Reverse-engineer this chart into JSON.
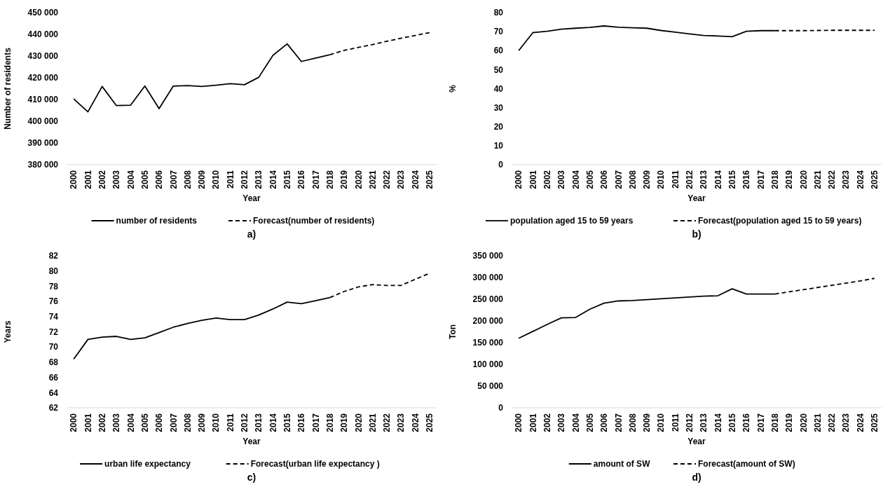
{
  "chart_data": [
    {
      "type": "line",
      "title": "a)",
      "xlabel": "Year",
      "ylabel": "Number of residents",
      "categories": [
        "2000",
        "2001",
        "2002",
        "2003",
        "2004",
        "2005",
        "2006",
        "2007",
        "2008",
        "2009",
        "2010",
        "2011",
        "2012",
        "2013",
        "2014",
        "2015",
        "2016",
        "2017",
        "2018",
        "2019",
        "2020",
        "2021",
        "2022",
        "2023",
        "2024",
        "2025"
      ],
      "series": [
        {
          "name": "number of residents",
          "color": "#000000",
          "line_style": "solid",
          "values": [
            410300,
            404300,
            416000,
            407200,
            407400,
            416200,
            405800,
            416200,
            416400,
            416000,
            416600,
            417300,
            416800,
            420200,
            430300,
            435600,
            427500,
            429100,
            430600,
            null,
            null,
            null,
            null,
            null,
            null,
            null
          ]
        },
        {
          "name": "Forecast(number of residents)",
          "color": "#000000",
          "line_style": "dashed",
          "values": [
            null,
            null,
            null,
            null,
            null,
            null,
            null,
            null,
            null,
            null,
            null,
            null,
            null,
            null,
            null,
            null,
            null,
            null,
            430600,
            432600,
            434000,
            435300,
            436800,
            438200,
            439500,
            440800
          ]
        }
      ],
      "ylim": [
        380000,
        450000
      ],
      "yticks": [
        {
          "value": 380000,
          "label": "380 000"
        },
        {
          "value": 390000,
          "label": "390 000"
        },
        {
          "value": 400000,
          "label": "400 000"
        },
        {
          "value": 410000,
          "label": "410 000"
        },
        {
          "value": 420000,
          "label": "420 000"
        },
        {
          "value": 430000,
          "label": "430 000"
        },
        {
          "value": 440000,
          "label": "440 000"
        },
        {
          "value": 450000,
          "label": "450 000"
        }
      ],
      "grid": false,
      "legend": "bottom",
      "marker": "none"
    },
    {
      "type": "line",
      "title": "b)",
      "xlabel": "Year",
      "ylabel": "%",
      "categories": [
        "2000",
        "2001",
        "2002",
        "2003",
        "2004",
        "2005",
        "2006",
        "2007",
        "2008",
        "2009",
        "2010",
        "2011",
        "2012",
        "2013",
        "2014",
        "2015",
        "2016",
        "2017",
        "2018",
        "2019",
        "2020",
        "2021",
        "2022",
        "2023",
        "2024",
        "2025"
      ],
      "series": [
        {
          "name": "population aged 15 to 59 years",
          "color": "#000000",
          "line_style": "solid",
          "values": [
            60,
            69.5,
            70.2,
            71.3,
            71.8,
            72.2,
            73,
            72.3,
            72,
            71.8,
            70.6,
            69.7,
            68.8,
            68,
            67.7,
            67.3,
            70.2,
            70.5,
            70.5,
            null,
            null,
            null,
            null,
            null,
            null,
            null
          ]
        },
        {
          "name": "Forecast(population aged 15 to 59 years)",
          "color": "#000000",
          "line_style": "dashed",
          "values": [
            null,
            null,
            null,
            null,
            null,
            null,
            null,
            null,
            null,
            null,
            null,
            null,
            null,
            null,
            null,
            null,
            null,
            null,
            70.5,
            70.5,
            70.5,
            70.6,
            70.7,
            70.7,
            70.7,
            70.7
          ]
        }
      ],
      "ylim": [
        0,
        80
      ],
      "yticks": [
        0,
        10,
        20,
        30,
        40,
        50,
        60,
        70,
        80
      ],
      "grid": false,
      "legend": "bottom",
      "marker": "none"
    },
    {
      "type": "line",
      "title": "c)",
      "xlabel": "Year",
      "ylabel": "Years",
      "categories": [
        "2000",
        "2001",
        "2002",
        "2003",
        "2004",
        "2005",
        "2006",
        "2007",
        "2008",
        "2009",
        "2010",
        "2011",
        "2012",
        "2013",
        "2014",
        "2015",
        "2016",
        "2017",
        "2018",
        "2019",
        "2020",
        "2021",
        "2022",
        "2023",
        "2024",
        "2025"
      ],
      "series": [
        {
          "name": "urban life expectancy",
          "color": "#000000",
          "line_style": "solid",
          "values": [
            68.4,
            71,
            71.3,
            71.4,
            71,
            71.2,
            71.9,
            72.6,
            73.1,
            73.5,
            73.8,
            73.6,
            73.6,
            74.2,
            75,
            75.9,
            75.7,
            76.1,
            76.5,
            null,
            null,
            null,
            null,
            null,
            null,
            null
          ]
        },
        {
          "name": "Forecast(urban life expectancy )",
          "color": "#000000",
          "line_style": "dashed",
          "values": [
            null,
            null,
            null,
            null,
            null,
            null,
            null,
            null,
            null,
            null,
            null,
            null,
            null,
            null,
            null,
            null,
            null,
            null,
            76.5,
            77.3,
            77.9,
            78.2,
            78.1,
            78.1,
            78.9,
            79.7
          ]
        }
      ],
      "ylim": [
        62,
        82
      ],
      "yticks": [
        62,
        64,
        66,
        68,
        70,
        72,
        74,
        76,
        78,
        80,
        82
      ],
      "grid": false,
      "legend": "bottom",
      "marker": "none"
    },
    {
      "type": "line",
      "title": "d)",
      "xlabel": "Year",
      "ylabel": "Ton",
      "categories": [
        "2000",
        "2001",
        "2002",
        "2003",
        "2004",
        "2005",
        "2006",
        "2007",
        "2008",
        "2009",
        "2010",
        "2011",
        "2012",
        "2013",
        "2014",
        "2015",
        "2016",
        "2017",
        "2018",
        "2019",
        "2020",
        "2021",
        "2022",
        "2023",
        "2024",
        "2025"
      ],
      "series": [
        {
          "name": "amount of SW",
          "color": "#000000",
          "line_style": "solid",
          "values": [
            160000,
            176000,
            192000,
            207000,
            208000,
            227000,
            241000,
            246000,
            247000,
            249000,
            251000,
            253000,
            255000,
            257000,
            258000,
            274000,
            262000,
            262000,
            262000,
            null,
            null,
            null,
            null,
            null,
            null,
            null
          ]
        },
        {
          "name": "Forecast(amount of SW)",
          "color": "#000000",
          "line_style": "dashed",
          "values": [
            null,
            null,
            null,
            null,
            null,
            null,
            null,
            null,
            null,
            null,
            null,
            null,
            null,
            null,
            null,
            null,
            null,
            null,
            262000,
            267000,
            272000,
            277000,
            282000,
            287000,
            292000,
            298000
          ]
        }
      ],
      "ylim": [
        0,
        350000
      ],
      "yticks": [
        0,
        {
          "value": 50000,
          "label": "50 000"
        },
        {
          "value": 100000,
          "label": "100 000"
        },
        {
          "value": 150000,
          "label": "150 000"
        },
        {
          "value": 200000,
          "label": "200 000"
        },
        {
          "value": 250000,
          "label": "250 000"
        },
        {
          "value": 300000,
          "label": "300 000"
        },
        {
          "value": 350000,
          "label": "350 000"
        }
      ],
      "grid": false,
      "legend": "bottom",
      "marker": "none"
    }
  ]
}
